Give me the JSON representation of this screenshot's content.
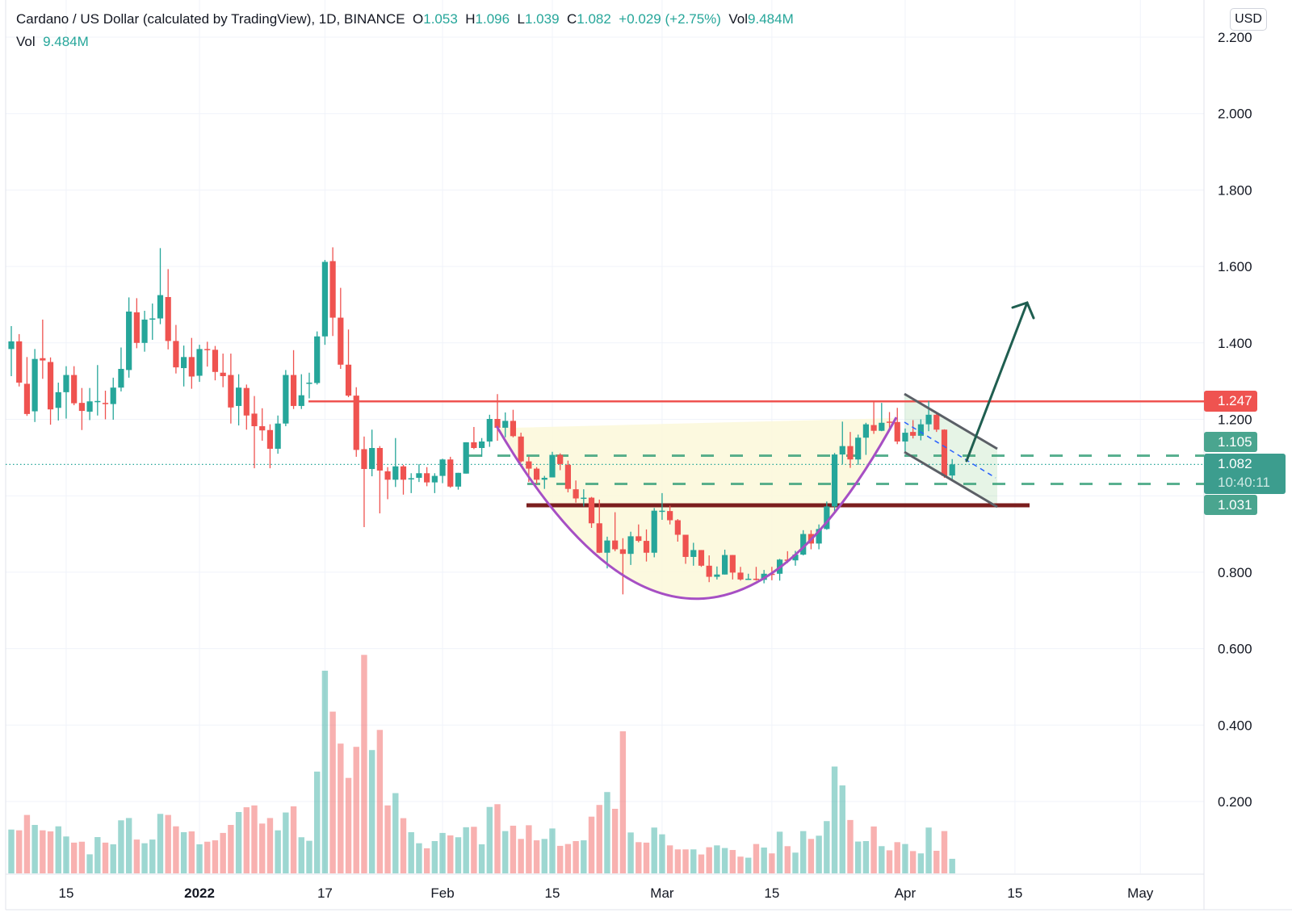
{
  "legend": {
    "symbol": "Cardano / US Dollar (calculated by TradingView), 1D, BINANCE",
    "o_label": "O",
    "o": "1.053",
    "h_label": "H",
    "h": "1.096",
    "l_label": "L",
    "l": "1.039",
    "c_label": "C",
    "c": "1.082",
    "change": "+0.029 (+2.75%)",
    "vol_label": "Vol",
    "vol": "9.484M",
    "vol_row_label": "Vol",
    "vol_row_value": "9.484M"
  },
  "currency_button": "USD",
  "colors": {
    "up": "#26a69a",
    "down": "#ef5350",
    "resistance": "#ef5350",
    "support": "#7b1e1e",
    "cup": "#a64fc4",
    "arrow": "#1f5e50"
  },
  "chart_data": {
    "type": "candlestick",
    "title": "Cardano / US Dollar, 1D, BINANCE",
    "ylim": [
      0.0,
      2.2
    ],
    "y_ticks": [
      "2.200",
      "2.000",
      "1.800",
      "1.600",
      "1.400",
      "1.200",
      "0.800",
      "0.600",
      "0.400",
      "0.200"
    ],
    "x_ticks": [
      {
        "label": "15",
        "day": 7,
        "bold": false
      },
      {
        "label": "2022",
        "day": 24,
        "bold": true
      },
      {
        "label": "17",
        "day": 40,
        "bold": false
      },
      {
        "label": "Feb",
        "day": 55,
        "bold": false
      },
      {
        "label": "15",
        "day": 69,
        "bold": false
      },
      {
        "label": "Mar",
        "day": 83,
        "bold": false
      },
      {
        "label": "15",
        "day": 97,
        "bold": false
      },
      {
        "label": "Apr",
        "day": 114,
        "bold": false
      },
      {
        "label": "15",
        "day": 128,
        "bold": false
      },
      {
        "label": "May",
        "day": 144,
        "bold": false
      }
    ],
    "candle_fields": [
      "open",
      "high",
      "low",
      "close",
      "volume_M"
    ],
    "candles": [
      [
        1.384,
        1.444,
        1.313,
        1.404,
        28.5
      ],
      [
        1.404,
        1.423,
        1.286,
        1.296,
        28
      ],
      [
        1.293,
        1.363,
        1.209,
        1.214,
        38
      ],
      [
        1.221,
        1.384,
        1.193,
        1.358,
        31.5
      ],
      [
        1.36,
        1.461,
        1.306,
        1.354,
        28
      ],
      [
        1.35,
        1.362,
        1.186,
        1.226,
        27.3
      ],
      [
        1.23,
        1.296,
        1.197,
        1.271,
        30.6
      ],
      [
        1.271,
        1.339,
        1.202,
        1.316,
        24
      ],
      [
        1.316,
        1.339,
        1.237,
        1.242,
        20
      ],
      [
        1.243,
        1.282,
        1.172,
        1.222,
        20.6
      ],
      [
        1.22,
        1.282,
        1.198,
        1.247,
        12.4
      ],
      [
        1.246,
        1.342,
        1.21,
        1.248,
        23.6
      ],
      [
        1.243,
        1.275,
        1.2,
        1.242,
        20
      ],
      [
        1.24,
        1.309,
        1.199,
        1.283,
        18.9
      ],
      [
        1.283,
        1.388,
        1.273,
        1.332,
        34.5
      ],
      [
        1.329,
        1.519,
        1.309,
        1.482,
        36
      ],
      [
        1.48,
        1.517,
        1.386,
        1.4,
        22
      ],
      [
        1.4,
        1.484,
        1.377,
        1.461,
        19.6
      ],
      [
        1.461,
        1.503,
        1.408,
        1.464,
        22
      ],
      [
        1.464,
        1.648,
        1.449,
        1.525,
        38.7
      ],
      [
        1.52,
        1.593,
        1.383,
        1.405,
        38
      ],
      [
        1.405,
        1.447,
        1.32,
        1.336,
        30.6
      ],
      [
        1.334,
        1.393,
        1.286,
        1.363,
        26.8
      ],
      [
        1.363,
        1.413,
        1.28,
        1.312,
        27.3
      ],
      [
        1.314,
        1.395,
        1.298,
        1.384,
        18.9
      ],
      [
        1.384,
        1.403,
        1.338,
        1.382,
        20.6
      ],
      [
        1.382,
        1.392,
        1.302,
        1.324,
        21.5
      ],
      [
        1.322,
        1.372,
        1.284,
        1.313,
        26.3
      ],
      [
        1.316,
        1.372,
        1.189,
        1.231,
        31.5
      ],
      [
        1.235,
        1.318,
        1.184,
        1.283,
        39.9
      ],
      [
        1.282,
        1.291,
        1.173,
        1.21,
        43
      ],
      [
        1.215,
        1.261,
        1.072,
        1.182,
        44.2
      ],
      [
        1.182,
        1.229,
        1.144,
        1.171,
        32.4
      ],
      [
        1.172,
        1.187,
        1.072,
        1.123,
        36
      ],
      [
        1.123,
        1.21,
        1.11,
        1.189,
        28
      ],
      [
        1.189,
        1.329,
        1.182,
        1.316,
        39.6
      ],
      [
        1.316,
        1.381,
        1.227,
        1.235,
        43.6
      ],
      [
        1.235,
        1.318,
        1.227,
        1.263,
        23.5
      ],
      [
        1.295,
        1.322,
        1.255,
        1.296,
        21.2
      ],
      [
        1.295,
        1.43,
        1.291,
        1.417,
        66.2
      ],
      [
        1.417,
        1.617,
        1.395,
        1.612,
        131.8
      ],
      [
        1.614,
        1.65,
        1.418,
        1.466,
        105.2
      ],
      [
        1.466,
        1.544,
        1.332,
        1.343,
        84.4
      ],
      [
        1.343,
        1.435,
        1.258,
        1.262,
        62.1
      ],
      [
        1.262,
        1.284,
        1.102,
        1.12,
        82.3
      ],
      [
        1.122,
        1.155,
        0.918,
        1.07,
        142.1
      ],
      [
        1.07,
        1.173,
        1.051,
        1.125,
        80.2
      ],
      [
        1.125,
        1.13,
        0.954,
        1.066,
        93.3
      ],
      [
        1.064,
        1.075,
        0.991,
        1.042,
        44.2
      ],
      [
        1.042,
        1.151,
        1.023,
        1.077,
        52.2
      ],
      [
        1.077,
        1.081,
        1.003,
        1.042,
        35.9
      ],
      [
        1.045,
        1.059,
        1.007,
        1.046,
        26.8
      ],
      [
        1.047,
        1.083,
        1.036,
        1.059,
        19.6
      ],
      [
        1.059,
        1.075,
        1.025,
        1.035,
        16.3
      ],
      [
        1.035,
        1.059,
        1.007,
        1.052,
        21
      ],
      [
        1.052,
        1.097,
        1.033,
        1.095,
        26.3
      ],
      [
        1.095,
        1.102,
        1.021,
        1.024,
        24.7
      ],
      [
        1.024,
        1.06,
        1.016,
        1.06,
        23.5
      ],
      [
        1.058,
        1.14,
        1.058,
        1.14,
        30
      ],
      [
        1.14,
        1.18,
        1.122,
        1.125,
        30.3
      ],
      [
        1.125,
        1.151,
        1.102,
        1.142,
        18.9
      ],
      [
        1.142,
        1.212,
        1.128,
        1.201,
        43.2
      ],
      [
        1.201,
        1.266,
        1.144,
        1.178,
        45
      ],
      [
        1.178,
        1.218,
        1.153,
        1.196,
        27.5
      ],
      [
        1.196,
        1.225,
        1.153,
        1.156,
        31
      ],
      [
        1.155,
        1.165,
        1.087,
        1.09,
        22.4
      ],
      [
        1.09,
        1.102,
        1.036,
        1.071,
        31.3
      ],
      [
        1.071,
        1.075,
        1.031,
        1.042,
        21.5
      ],
      [
        1.042,
        1.052,
        1.018,
        1.047,
        22.4
      ],
      [
        1.048,
        1.115,
        1.048,
        1.107,
        29.2
      ],
      [
        1.107,
        1.111,
        1.067,
        1.083,
        17.9
      ],
      [
        1.081,
        1.092,
        1.009,
        1.018,
        19.1
      ],
      [
        1.017,
        1.04,
        0.982,
        0.993,
        21
      ],
      [
        0.993,
        1.017,
        0.972,
        0.995,
        21.5
      ],
      [
        0.995,
        0.997,
        0.916,
        0.928,
        36.9
      ],
      [
        0.928,
        0.99,
        0.85,
        0.851,
        44.5
      ],
      [
        0.851,
        0.893,
        0.81,
        0.883,
        52.9
      ],
      [
        0.883,
        0.957,
        0.855,
        0.86,
        42
      ],
      [
        0.86,
        0.889,
        0.742,
        0.848,
        92.4
      ],
      [
        0.848,
        0.906,
        0.819,
        0.894,
        26.6
      ],
      [
        0.894,
        0.925,
        0.878,
        0.882,
        20.3
      ],
      [
        0.882,
        0.912,
        0.828,
        0.851,
        20
      ],
      [
        0.851,
        0.968,
        0.839,
        0.961,
        29.8
      ],
      [
        0.96,
        1.007,
        0.937,
        0.961,
        25.4
      ],
      [
        0.96,
        0.974,
        0.925,
        0.936,
        18.2
      ],
      [
        0.936,
        0.939,
        0.88,
        0.898,
        15.6
      ],
      [
        0.898,
        0.898,
        0.822,
        0.84,
        15.6
      ],
      [
        0.84,
        0.877,
        0.817,
        0.858,
        15.6
      ],
      [
        0.858,
        0.858,
        0.814,
        0.817,
        12.3
      ],
      [
        0.817,
        0.844,
        0.774,
        0.788,
        17
      ],
      [
        0.788,
        0.815,
        0.781,
        0.794,
        18.2
      ],
      [
        0.794,
        0.859,
        0.794,
        0.845,
        16.5
      ],
      [
        0.845,
        0.845,
        0.781,
        0.799,
        15.2
      ],
      [
        0.799,
        0.814,
        0.778,
        0.781,
        10.9
      ],
      [
        0.781,
        0.796,
        0.78,
        0.783,
        10.2
      ],
      [
        0.783,
        0.814,
        0.778,
        0.78,
        19.1
      ],
      [
        0.78,
        0.806,
        0.771,
        0.796,
        16.8
      ],
      [
        0.796,
        0.814,
        0.779,
        0.794,
        13
      ],
      [
        0.796,
        0.835,
        0.778,
        0.833,
        27.1
      ],
      [
        0.833,
        0.855,
        0.824,
        0.832,
        17.7
      ],
      [
        0.831,
        0.856,
        0.817,
        0.846,
        13.5
      ],
      [
        0.846,
        0.91,
        0.844,
        0.9,
        27.5
      ],
      [
        0.9,
        0.91,
        0.86,
        0.875,
        22.4
      ],
      [
        0.875,
        0.925,
        0.86,
        0.913,
        24.5
      ],
      [
        0.913,
        0.985,
        0.911,
        0.972,
        34
      ],
      [
        0.972,
        1.112,
        0.957,
        1.108,
        69.5
      ],
      [
        1.108,
        1.194,
        1.083,
        1.13,
        57.2
      ],
      [
        1.13,
        1.167,
        1.073,
        1.095,
        34.7
      ],
      [
        1.095,
        1.16,
        1.081,
        1.152,
        20.7
      ],
      [
        1.152,
        1.191,
        1.107,
        1.187,
        21
      ],
      [
        1.185,
        1.246,
        1.162,
        1.17,
        30.5
      ],
      [
        1.17,
        1.243,
        1.169,
        1.191,
        17.7
      ],
      [
        1.194,
        1.219,
        1.176,
        1.193,
        15
      ],
      [
        1.193,
        1.23,
        1.135,
        1.142,
        20.3
      ],
      [
        1.142,
        1.176,
        1.112,
        1.165,
        19.1
      ],
      [
        1.167,
        1.198,
        1.15,
        1.157,
        14.5
      ],
      [
        1.157,
        1.2,
        1.145,
        1.187,
        13
      ],
      [
        1.187,
        1.248,
        1.169,
        1.212,
        29.8
      ],
      [
        1.212,
        1.219,
        1.167,
        1.173,
        14.7
      ],
      [
        1.173,
        1.174,
        1.047,
        1.052,
        27.5
      ],
      [
        1.053,
        1.096,
        1.039,
        1.082,
        9.484
      ]
    ],
    "levels": {
      "resistance": {
        "value": 1.247,
        "label": "1.247"
      },
      "upper_dashed": {
        "value": 1.105,
        "label": "1.105"
      },
      "last_price": {
        "value": 1.082,
        "label": "1.082",
        "countdown": "10:40:11"
      },
      "lower_dashed": {
        "value": 1.031,
        "label": "1.031"
      },
      "support": {
        "value": 0.975
      }
    },
    "annotations": [
      "cup-and-handle pattern",
      "descending channel (handle)",
      "breakout arrow"
    ]
  }
}
